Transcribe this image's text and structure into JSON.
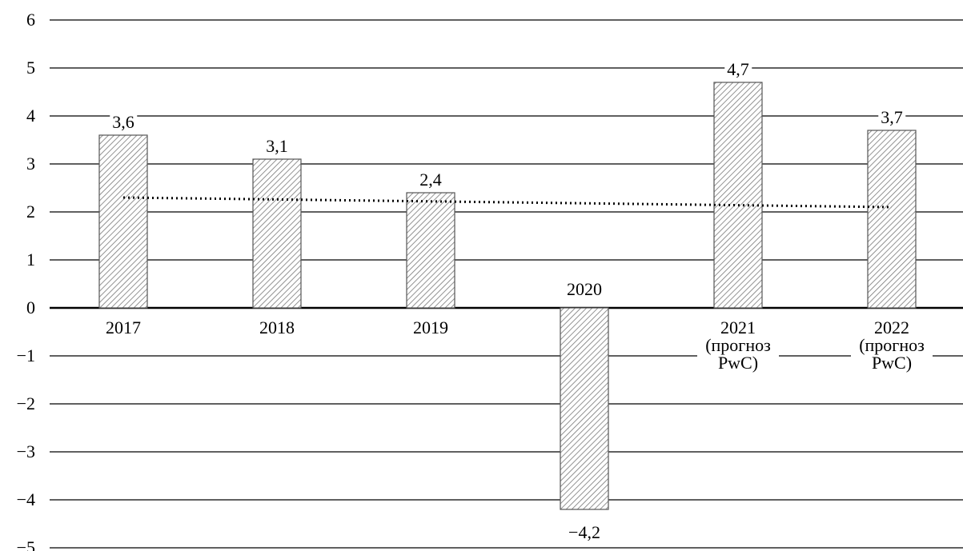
{
  "chart_data": {
    "type": "bar",
    "categories": [
      "2017",
      "2018",
      "2019",
      "2020",
      "2021 (прогноз PwC)",
      "2022 (прогноз PwC)"
    ],
    "values": [
      3.6,
      3.1,
      2.4,
      -4.2,
      4.7,
      3.7
    ],
    "value_labels": [
      "3,6",
      "3,1",
      "2,4",
      "−4,2",
      "4,7",
      "3,7"
    ],
    "color": "#555555",
    "ylim": [
      -5,
      6
    ],
    "yticks": [
      {
        "value": -5,
        "label": "−5"
      },
      {
        "value": -4,
        "label": "−4"
      },
      {
        "value": -3,
        "label": "−3"
      },
      {
        "value": -2,
        "label": "−2"
      },
      {
        "value": -1,
        "label": "−1"
      },
      0,
      1,
      2,
      3,
      4,
      5,
      6
    ],
    "grid": true,
    "trend": [
      2.3,
      2.1
    ]
  }
}
